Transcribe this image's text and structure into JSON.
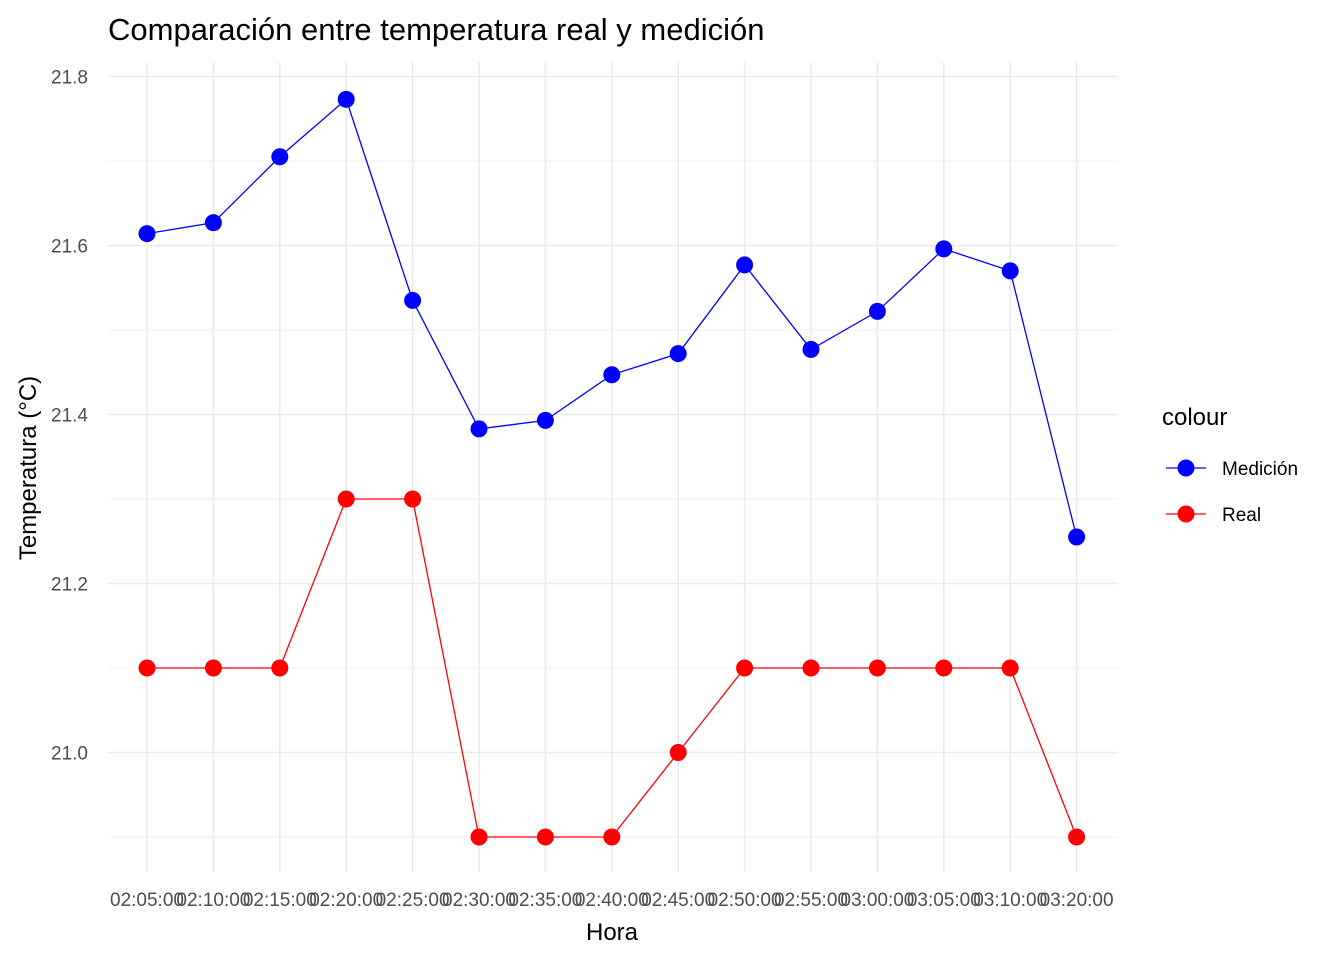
{
  "chart_data": {
    "type": "line",
    "title": "Comparación entre temperatura real y medición",
    "xlabel": "Hora",
    "ylabel": "Temperatura (°C)",
    "categories": [
      "02:05:00",
      "02:10:00",
      "02:15:00",
      "02:20:00",
      "02:25:00",
      "02:30:00",
      "02:35:00",
      "02:40:00",
      "02:45:00",
      "02:50:00",
      "02:55:00",
      "03:00:00",
      "03:05:00",
      "03:10:00",
      "03:20:00"
    ],
    "ylim": [
      20.9,
      21.8
    ],
    "yticks": [
      "21.0",
      "21.2",
      "21.4",
      "21.6",
      "21.8"
    ],
    "grid": true,
    "legend": {
      "title": "colour",
      "position": "right"
    },
    "series": [
      {
        "name": "Medición",
        "color": "#0000ff",
        "values": [
          21.614,
          21.627,
          21.705,
          21.773,
          21.535,
          21.383,
          21.393,
          21.447,
          21.472,
          21.577,
          21.477,
          21.522,
          21.596,
          21.57,
          21.255
        ]
      },
      {
        "name": "Real",
        "color": "#ff0000",
        "values": [
          21.1,
          21.1,
          21.1,
          21.3,
          21.3,
          20.9,
          20.9,
          20.9,
          21.0,
          21.1,
          21.1,
          21.1,
          21.1,
          21.1,
          20.9
        ]
      }
    ]
  }
}
